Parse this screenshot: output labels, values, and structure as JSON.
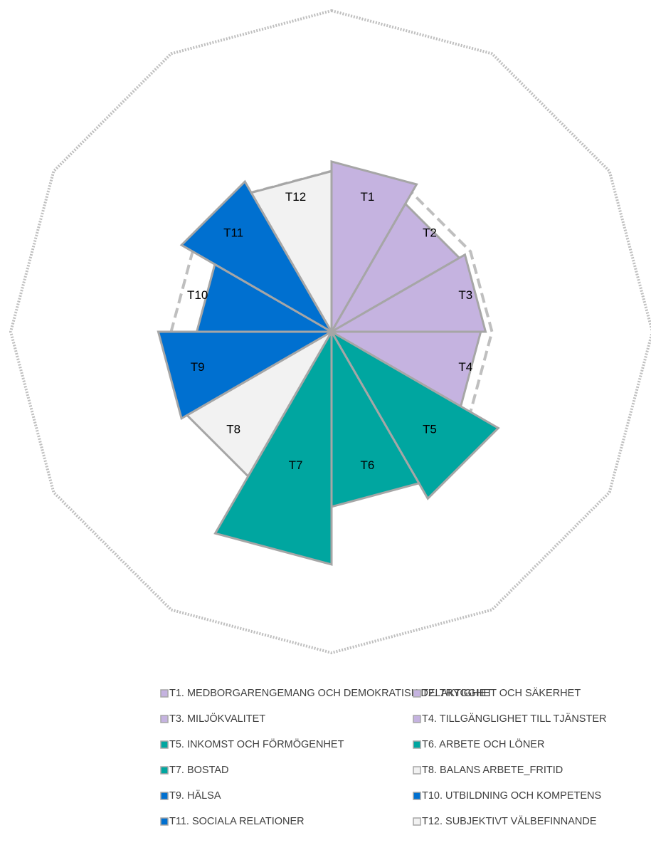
{
  "chart_data": {
    "type": "polar_area",
    "categories": [
      "T1",
      "T2",
      "T3",
      "T4",
      "T5",
      "T6",
      "T7",
      "T8",
      "T9",
      "T10",
      "T11",
      "T12"
    ],
    "legend_labels": [
      "T1. MEDBORGARENGEMANG OCH DEMOKRATISK DELAKTIGHET",
      "T2. TRYGGHET OCH SÄKERHET",
      "T3. MILJÖKVALITET",
      "T4. TILLGÄNGLIGHET TILL TJÄNSTER",
      "T5. INKOMST OCH FÖRMÖGENHET",
      "T6. ARBETE OCH LÖNER",
      "T7. BOSTAD",
      "T8. BALANS ARBETE_FRITID",
      "T9. HÄLSA",
      "T10. UTBILDNING OCH KOMPETENS",
      "T11. SOCIALA RELATIONER",
      "T12. SUBJEKTIVT VÄLBEFINNANDE"
    ],
    "values": [
      53,
      46,
      48,
      46.5,
      60,
      54.5,
      72.5,
      52,
      54,
      42,
      54,
      50
    ],
    "colors": [
      "#c5b3e0",
      "#c5b3e0",
      "#c5b3e0",
      "#c5b3e0",
      "#00a6a0",
      "#00a6a0",
      "#00a6a0",
      "#f2f2f2",
      "#0070d0",
      "#0070d0",
      "#0070d0",
      "#f2f2f2"
    ],
    "rlim": [
      0,
      100
    ],
    "reference": 50
  }
}
